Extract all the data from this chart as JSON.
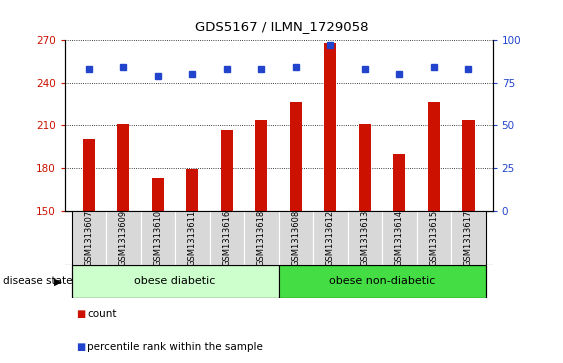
{
  "title": "GDS5167 / ILMN_1729058",
  "samples": [
    "GSM1313607",
    "GSM1313609",
    "GSM1313610",
    "GSM1313611",
    "GSM1313616",
    "GSM1313618",
    "GSM1313608",
    "GSM1313612",
    "GSM1313613",
    "GSM1313614",
    "GSM1313615",
    "GSM1313617"
  ],
  "counts": [
    200,
    211,
    173,
    179,
    207,
    214,
    226,
    268,
    211,
    190,
    226,
    214
  ],
  "percentile_ranks": [
    83,
    84,
    79,
    80,
    83,
    83,
    84,
    97,
    83,
    80,
    84,
    83
  ],
  "bar_color": "#cc1100",
  "dot_color": "#2244cc",
  "ylim_left": [
    150,
    270
  ],
  "ylim_right": [
    0,
    100
  ],
  "yticks_left": [
    150,
    180,
    210,
    240,
    270
  ],
  "yticks_right": [
    0,
    25,
    50,
    75,
    100
  ],
  "groups": [
    {
      "label": "obese diabetic",
      "start": 0,
      "end": 5
    },
    {
      "label": "obese non-diabetic",
      "start": 6,
      "end": 11
    }
  ],
  "group_colors": [
    "#ccffcc",
    "#44dd44"
  ],
  "disease_state_label": "disease state",
  "legend_count_label": "count",
  "legend_percentile_label": "percentile rank within the sample",
  "plot_bg_color": "#ffffff",
  "tick_label_bg": "#d8d8d8",
  "bar_width": 0.35
}
